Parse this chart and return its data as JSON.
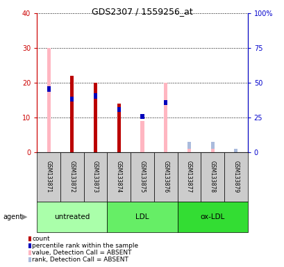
{
  "title": "GDS2307 / 1559256_at",
  "samples": [
    "GSM133871",
    "GSM133872",
    "GSM133873",
    "GSM133874",
    "GSM133875",
    "GSM133876",
    "GSM133877",
    "GSM133878",
    "GSM133879"
  ],
  "count": [
    0,
    22,
    20,
    14,
    0,
    0,
    0,
    0,
    0
  ],
  "percentile": [
    19,
    16,
    17,
    13,
    11,
    15,
    0,
    0,
    0
  ],
  "value_absent": [
    30,
    0,
    0,
    0,
    9,
    20,
    1,
    1,
    0
  ],
  "rank_absent": [
    0,
    0,
    0,
    0,
    0,
    0,
    3,
    3,
    1
  ],
  "ylim_left": [
    0,
    40
  ],
  "ylim_right": [
    0,
    100
  ],
  "left_ticks": [
    0,
    10,
    20,
    30,
    40
  ],
  "right_ticks": [
    0,
    25,
    50,
    75,
    100
  ],
  "left_tick_labels": [
    "0",
    "10",
    "20",
    "30",
    "40"
  ],
  "right_tick_labels": [
    "0",
    "25",
    "50",
    "75",
    "100%"
  ],
  "bar_width": 0.3,
  "count_color": "#BB0000",
  "percentile_color": "#0000BB",
  "value_absent_color": "#FFB6C1",
  "rank_absent_color": "#AABBDD",
  "grid_color": "#000000",
  "sample_box_color": "#CCCCCC",
  "group_untreated_color": "#AAFFAA",
  "group_ldl_color": "#66EE66",
  "group_oxldl_color": "#33DD33",
  "left_axis_color": "#CC0000",
  "right_axis_color": "#0000CC",
  "groups": [
    {
      "label": "untreated",
      "start": 0,
      "end": 2,
      "color": "#AAFFAA"
    },
    {
      "label": "LDL",
      "start": 3,
      "end": 5,
      "color": "#66EE66"
    },
    {
      "label": "ox-LDL",
      "start": 6,
      "end": 8,
      "color": "#33DD33"
    }
  ],
  "legend_items": [
    {
      "color": "#BB0000",
      "label": "count"
    },
    {
      "color": "#0000BB",
      "label": "percentile rank within the sample"
    },
    {
      "color": "#FFB6C1",
      "label": "value, Detection Call = ABSENT"
    },
    {
      "color": "#AABBDD",
      "label": "rank, Detection Call = ABSENT"
    }
  ]
}
